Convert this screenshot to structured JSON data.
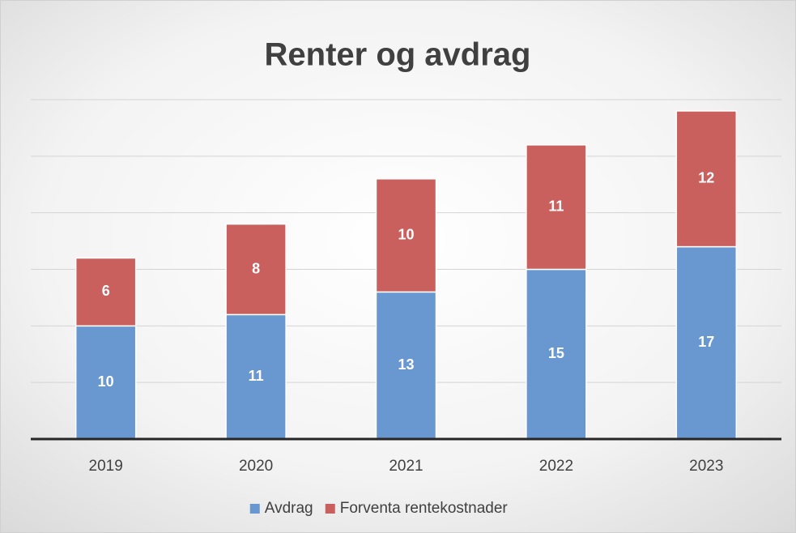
{
  "chart_data": {
    "type": "stacked_bar",
    "title": "Renter og avdrag",
    "categories": [
      "2019",
      "2020",
      "2021",
      "2022",
      "2023"
    ],
    "series": [
      {
        "name": "Avdrag",
        "color": "#6997d0",
        "values": [
          10,
          11,
          13,
          15,
          17
        ]
      },
      {
        "name": "Forventa rentekostnader",
        "color": "#c9605e",
        "values": [
          6,
          8,
          10,
          11,
          12
        ]
      }
    ],
    "ylim": [
      0,
      30
    ],
    "yticks": [
      0,
      5,
      10,
      15,
      20,
      25,
      30
    ],
    "grid": true,
    "legend": "bottom"
  }
}
